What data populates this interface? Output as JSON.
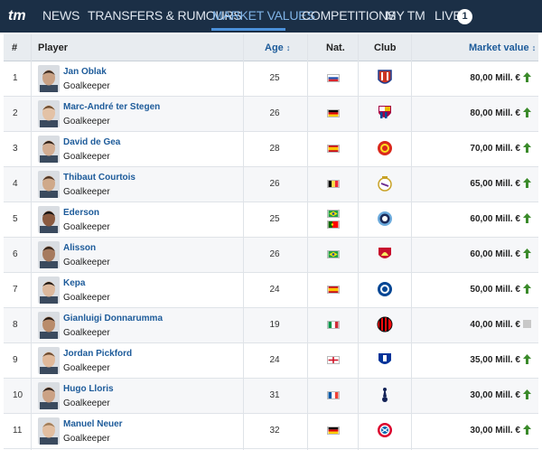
{
  "nav": {
    "logo": "tm",
    "items": [
      {
        "label": "NEWS",
        "active": false
      },
      {
        "label": "TRANSFERS & RUMOURS",
        "active": false
      },
      {
        "label": "MARKET VALUES",
        "active": true
      },
      {
        "label": "COMPETITIONS",
        "active": false
      },
      {
        "label": "MY TM",
        "active": false
      },
      {
        "label": "LIVE",
        "active": false
      }
    ],
    "live_count": "1"
  },
  "table": {
    "headers": {
      "rank": "#",
      "player": "Player",
      "age": "Age",
      "nat": "Nat.",
      "club": "Club",
      "market_value": "Market value"
    },
    "sort_icon": "sort-arrows-icon",
    "rows": [
      {
        "rank": "1",
        "name": "Jan Oblak",
        "position": "Goalkeeper",
        "age": "25",
        "nationality": [
          "Slovenia"
        ],
        "club": "Atlético Madrid",
        "value": "80,00 Mill. €",
        "trend": "up"
      },
      {
        "rank": "2",
        "name": "Marc-André ter Stegen",
        "position": "Goalkeeper",
        "age": "26",
        "nationality": [
          "Germany"
        ],
        "club": "FC Barcelona",
        "value": "80,00 Mill. €",
        "trend": "up"
      },
      {
        "rank": "3",
        "name": "David de Gea",
        "position": "Goalkeeper",
        "age": "28",
        "nationality": [
          "Spain"
        ],
        "club": "Manchester United",
        "value": "70,00 Mill. €",
        "trend": "up"
      },
      {
        "rank": "4",
        "name": "Thibaut Courtois",
        "position": "Goalkeeper",
        "age": "26",
        "nationality": [
          "Belgium"
        ],
        "club": "Real Madrid",
        "value": "65,00 Mill. €",
        "trend": "up"
      },
      {
        "rank": "5",
        "name": "Ederson",
        "position": "Goalkeeper",
        "age": "25",
        "nationality": [
          "Brazil",
          "Portugal"
        ],
        "club": "Manchester City",
        "value": "60,00 Mill. €",
        "trend": "up"
      },
      {
        "rank": "6",
        "name": "Alisson",
        "position": "Goalkeeper",
        "age": "26",
        "nationality": [
          "Brazil"
        ],
        "club": "Liverpool FC",
        "value": "60,00 Mill. €",
        "trend": "up"
      },
      {
        "rank": "7",
        "name": "Kepa",
        "position": "Goalkeeper",
        "age": "24",
        "nationality": [
          "Spain"
        ],
        "club": "Chelsea FC",
        "value": "50,00 Mill. €",
        "trend": "up"
      },
      {
        "rank": "8",
        "name": "Gianluigi Donnarumma",
        "position": "Goalkeeper",
        "age": "19",
        "nationality": [
          "Italy"
        ],
        "club": "AC Milan",
        "value": "40,00 Mill. €",
        "trend": "none"
      },
      {
        "rank": "9",
        "name": "Jordan Pickford",
        "position": "Goalkeeper",
        "age": "24",
        "nationality": [
          "England"
        ],
        "club": "Everton FC",
        "value": "35,00 Mill. €",
        "trend": "up"
      },
      {
        "rank": "10",
        "name": "Hugo Lloris",
        "position": "Goalkeeper",
        "age": "31",
        "nationality": [
          "France"
        ],
        "club": "Tottenham Hotspur",
        "value": "30,00 Mill. €",
        "trend": "up"
      },
      {
        "rank": "11",
        "name": "Manuel Neuer",
        "position": "Goalkeeper",
        "age": "32",
        "nationality": [
          "Germany"
        ],
        "club": "Bayern Munich",
        "value": "30,00 Mill. €",
        "trend": "up"
      }
    ]
  },
  "colors": {
    "nav_bg": "#1b2f46",
    "nav_active": "#7fb3e6",
    "link": "#1d5b9a",
    "trend_up": "#3a8a2a",
    "trend_none": "#c8c8c8"
  }
}
